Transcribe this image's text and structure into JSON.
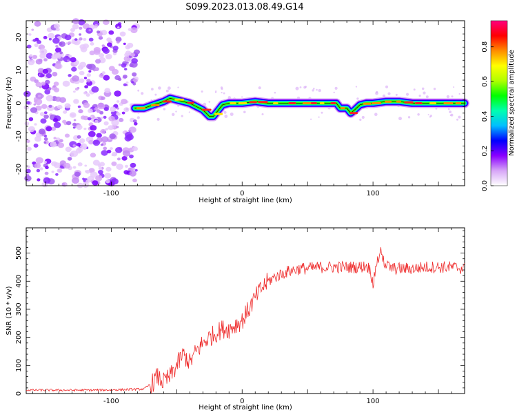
{
  "title": "S099.2023.013.08.49.G14",
  "chart_data": [
    {
      "type": "heatmap",
      "xlabel": "Height of straight line (km)",
      "ylabel": "Frequency (Hz)",
      "xlim": [
        -165,
        170
      ],
      "ylim": [
        -25,
        25
      ],
      "xticks": [
        -100,
        0,
        100
      ],
      "yticks": [
        -20,
        -10,
        0,
        10,
        20
      ],
      "colorbar": {
        "label": "Normalized spectral amplitude",
        "range": [
          0,
          0.95
        ],
        "ticks": [
          0.0,
          0.2,
          0.4,
          0.6,
          0.8
        ],
        "tick_labels": [
          "0.0",
          "0.2",
          "0.4",
          "0.6",
          "0.8"
        ],
        "colormap": [
          "#ffffff",
          "#d7a6f7",
          "#8a00ff",
          "#0000ff",
          "#00bfff",
          "#00ffb0",
          "#00ff00",
          "#b0ff00",
          "#ffff00",
          "#ff8c00",
          "#ff0000",
          "#ff007f"
        ]
      },
      "noise_region_x": [
        -165,
        -80
      ],
      "ridge": {
        "x": [
          -82,
          -75,
          -68,
          -60,
          -55,
          -50,
          -45,
          -40,
          -35,
          -30,
          -25,
          -22,
          -18,
          -15,
          -10,
          -5,
          0,
          10,
          20,
          30,
          40,
          50,
          60,
          70,
          72,
          75,
          80,
          83,
          86,
          90,
          95,
          100,
          110,
          120,
          130,
          140,
          150,
          160,
          170
        ],
        "y": [
          -1.5,
          -1.5,
          -0.5,
          0.5,
          1.5,
          1,
          0.5,
          0,
          -1,
          -2,
          -4,
          -4,
          -2,
          -0.5,
          0,
          0,
          0,
          0.5,
          0,
          0,
          0,
          0,
          0,
          0,
          0,
          -1.5,
          -1.5,
          -3,
          -2,
          -0.5,
          0,
          0,
          0.5,
          0.5,
          0,
          0,
          0,
          0,
          0
        ]
      }
    },
    {
      "type": "line",
      "xlabel": "Height of straight line (km)",
      "ylabel": "SNR (10 * v/v)",
      "xlim": [
        -165,
        170
      ],
      "ylim": [
        0,
        590
      ],
      "xticks": [
        -100,
        0,
        100
      ],
      "yticks": [
        0,
        100,
        200,
        300,
        400,
        500
      ],
      "color": "#ee2a2a",
      "series": [
        {
          "x": [
            -165,
            -150,
            -130,
            -110,
            -90,
            -75,
            -68,
            -65,
            -60,
            -55,
            -50,
            -45,
            -40,
            -35,
            -30,
            -25,
            -20,
            -15,
            -10,
            -5,
            0,
            5,
            10,
            15,
            20,
            25,
            30,
            35,
            40,
            45,
            50,
            60,
            70,
            80,
            90,
            95,
            98,
            100,
            103,
            106,
            110,
            115,
            120,
            130,
            140,
            150,
            160,
            170
          ],
          "y": [
            12,
            12,
            12,
            12,
            14,
            16,
            40,
            60,
            40,
            60,
            100,
            140,
            110,
            150,
            180,
            200,
            215,
            230,
            230,
            245,
            260,
            300,
            340,
            375,
            400,
            415,
            425,
            435,
            440,
            445,
            445,
            450,
            450,
            450,
            450,
            455,
            440,
            390,
            470,
            500,
            455,
            445,
            445,
            445,
            450,
            450,
            450,
            445
          ]
        }
      ]
    }
  ]
}
